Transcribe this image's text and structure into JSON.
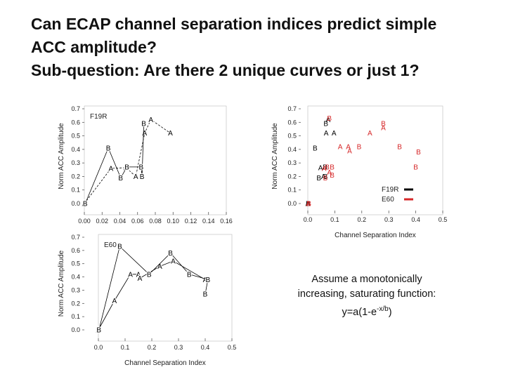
{
  "slide": {
    "title_lines": [
      "Can ECAP channel separation indices predict simple",
      "ACC amplitude?",
      "Sub-question: Are there 2 unique curves or just 1?"
    ],
    "note": {
      "line1": "Assume a monotonically",
      "line2": "increasing, saturating function:",
      "formula_prefix": "y=a(1-e",
      "formula_exp": "-x/b",
      "formula_suffix": ")"
    }
  },
  "chart_data": [
    {
      "type": "line",
      "panel_label": "F19R",
      "ylabel": "Norm ACC Amplitude",
      "xlabel": "",
      "xlim": [
        0,
        0.16
      ],
      "ylim": [
        0,
        0.7
      ],
      "x_ticks": [
        "0.00",
        "0.02",
        "0.04",
        "0.06",
        "0.08",
        "0.10",
        "0.12",
        "0.14",
        "0.16"
      ],
      "y_ticks": [
        "0.0",
        "0.1",
        "0.2",
        "0.3",
        "0.4",
        "0.5",
        "0.6",
        "0.7"
      ],
      "series": [
        {
          "name": "A",
          "color": "#000000",
          "dashed": true,
          "points": [
            [
              0.0,
              0.0
            ],
            [
              0.03,
              0.26
            ],
            [
              0.047,
              0.265
            ],
            [
              0.058,
              0.2
            ],
            [
              0.068,
              0.52
            ],
            [
              0.075,
              0.62
            ],
            [
              0.097,
              0.52
            ]
          ]
        },
        {
          "name": "B",
          "color": "#000000",
          "dashed": false,
          "points": [
            [
              0.001,
              0.0
            ],
            [
              0.027,
              0.41
            ],
            [
              0.041,
              0.19
            ],
            [
              0.048,
              0.27
            ],
            [
              0.064,
              0.27
            ],
            [
              0.065,
              0.2
            ],
            [
              0.067,
              0.59
            ]
          ]
        }
      ]
    },
    {
      "type": "line",
      "panel_label": "E60",
      "ylabel": "Norm ACC Amplitude",
      "xlabel": "Channel Separation Index",
      "xlim": [
        0,
        0.5
      ],
      "ylim": [
        0,
        0.7
      ],
      "x_ticks": [
        "0.0",
        "0.1",
        "0.2",
        "0.3",
        "0.4",
        "0.5"
      ],
      "y_ticks": [
        "0.0",
        "0.1",
        "0.2",
        "0.3",
        "0.4",
        "0.5",
        "0.6",
        "0.7"
      ],
      "series": [
        {
          "name": "A",
          "color": "#000000",
          "dashed": false,
          "points": [
            [
              0.0,
              0.0
            ],
            [
              0.06,
              0.22
            ],
            [
              0.12,
              0.42
            ],
            [
              0.15,
              0.42
            ],
            [
              0.155,
              0.39
            ],
            [
              0.23,
              0.48
            ],
            [
              0.28,
              0.52
            ],
            [
              0.4,
              0.38
            ]
          ]
        },
        {
          "name": "B",
          "color": "#000000",
          "dashed": false,
          "points": [
            [
              0.002,
              0.0
            ],
            [
              0.08,
              0.63
            ],
            [
              0.19,
              0.42
            ],
            [
              0.27,
              0.58
            ],
            [
              0.34,
              0.42
            ],
            [
              0.41,
              0.38
            ],
            [
              0.4,
              0.27
            ]
          ]
        }
      ]
    },
    {
      "type": "scatter",
      "ylabel": "Norm ACC Amplitude",
      "xlabel": "Channel Separation Index",
      "xlim": [
        0,
        0.5
      ],
      "ylim": [
        0,
        0.7
      ],
      "x_ticks": [
        "0.0",
        "0.1",
        "0.2",
        "0.3",
        "0.4",
        "0.5"
      ],
      "y_ticks": [
        "0.0",
        "0.1",
        "0.2",
        "0.3",
        "0.4",
        "0.5",
        "0.6",
        "0.7"
      ],
      "legend": {
        "position": "bottom-right",
        "entries": [
          {
            "label": "F19R",
            "color": "#000000"
          },
          {
            "label": "E60",
            "color": "#d62728"
          }
        ]
      },
      "series": [
        {
          "name": "F19R",
          "color": "#000000",
          "points": [
            {
              "x": 0.0,
              "y": 0.0,
              "label": "A"
            },
            {
              "x": 0.001,
              "y": 0.0,
              "label": "B"
            },
            {
              "x": 0.075,
              "y": 0.62,
              "label": "A"
            },
            {
              "x": 0.067,
              "y": 0.59,
              "label": "B"
            },
            {
              "x": 0.068,
              "y": 0.52,
              "label": "A"
            },
            {
              "x": 0.097,
              "y": 0.52,
              "label": "A"
            },
            {
              "x": 0.027,
              "y": 0.41,
              "label": "B"
            },
            {
              "x": 0.047,
              "y": 0.265,
              "label": "A"
            },
            {
              "x": 0.064,
              "y": 0.27,
              "label": "B"
            },
            {
              "x": 0.058,
              "y": 0.2,
              "label": "A"
            },
            {
              "x": 0.065,
              "y": 0.2,
              "label": "B"
            },
            {
              "x": 0.041,
              "y": 0.19,
              "label": "B"
            }
          ]
        },
        {
          "name": "E60",
          "color": "#d62728",
          "points": [
            {
              "x": 0.002,
              "y": 0.0,
              "label": "A"
            },
            {
              "x": 0.004,
              "y": 0.0,
              "label": "B"
            },
            {
              "x": 0.08,
              "y": 0.63,
              "label": "B"
            },
            {
              "x": 0.28,
              "y": 0.59,
              "label": "B"
            },
            {
              "x": 0.28,
              "y": 0.56,
              "label": "A"
            },
            {
              "x": 0.23,
              "y": 0.52,
              "label": "A"
            },
            {
              "x": 0.12,
              "y": 0.42,
              "label": "A"
            },
            {
              "x": 0.15,
              "y": 0.42,
              "label": "A"
            },
            {
              "x": 0.155,
              "y": 0.39,
              "label": "A"
            },
            {
              "x": 0.19,
              "y": 0.42,
              "label": "B"
            },
            {
              "x": 0.34,
              "y": 0.42,
              "label": "B"
            },
            {
              "x": 0.41,
              "y": 0.38,
              "label": "B"
            },
            {
              "x": 0.4,
              "y": 0.27,
              "label": "B"
            },
            {
              "x": 0.06,
              "y": 0.26,
              "label": "A"
            },
            {
              "x": 0.072,
              "y": 0.27,
              "label": "B"
            },
            {
              "x": 0.09,
              "y": 0.27,
              "label": "B"
            },
            {
              "x": 0.08,
              "y": 0.23,
              "label": "A"
            },
            {
              "x": 0.09,
              "y": 0.21,
              "label": "B"
            },
            {
              "x": 0.065,
              "y": 0.19,
              "label": "B"
            }
          ]
        }
      ]
    }
  ]
}
